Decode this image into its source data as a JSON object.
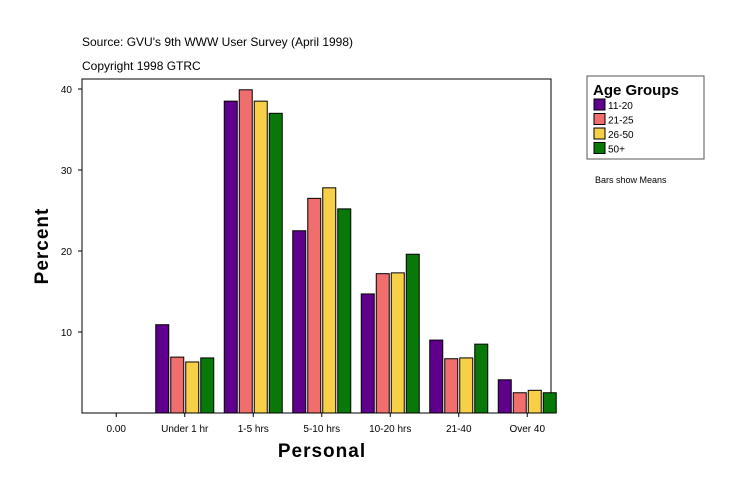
{
  "chart_data": {
    "type": "bar",
    "source_text": "Source: GVU's 9th WWW User Survey (April 1998)",
    "copyright_text": "Copyright 1998 GTRC",
    "xlabel": "Personal",
    "ylabel": "Percent",
    "categories": [
      "0.00",
      "Under 1 hr",
      "1-5 hrs",
      "5-10 hrs",
      "10-20 hrs",
      "21-40",
      "Over 40"
    ],
    "yticks": [
      10,
      20,
      30,
      40
    ],
    "ylim": [
      0,
      40
    ],
    "grid": false,
    "legend": {
      "title": "Age Groups",
      "placement": "right"
    },
    "note": "Bars show Means",
    "series": [
      {
        "name": "11-20",
        "color": "#5f008c",
        "values": [
          null,
          10.9,
          38.5,
          22.5,
          14.7,
          9.0,
          4.1
        ]
      },
      {
        "name": "21-25",
        "color": "#f06e6e",
        "values": [
          null,
          6.9,
          39.9,
          26.5,
          17.2,
          6.7,
          2.5
        ]
      },
      {
        "name": "26-50",
        "color": "#f8d048",
        "values": [
          null,
          6.3,
          38.5,
          27.8,
          17.3,
          6.8,
          2.8
        ]
      },
      {
        "name": "50+",
        "color": "#087808",
        "values": [
          null,
          6.8,
          37.0,
          25.2,
          19.6,
          8.5,
          2.5
        ]
      }
    ]
  }
}
